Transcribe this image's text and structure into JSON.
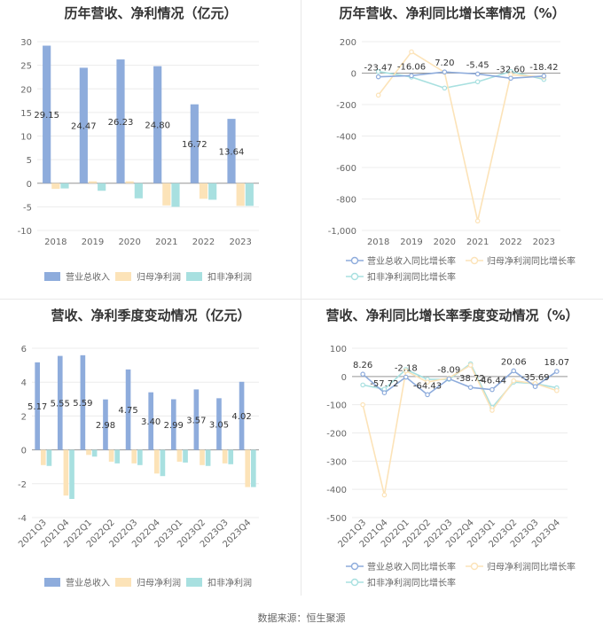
{
  "source_text": "数据来源：恒生聚源",
  "chart_data": [
    {
      "type": "bar",
      "title": "历年营收、净利情况（亿元）",
      "categories": [
        "2018",
        "2019",
        "2020",
        "2021",
        "2022",
        "2023"
      ],
      "ylim": [
        -10,
        30
      ],
      "yticks": [
        30,
        25,
        20,
        15,
        10,
        5,
        0,
        -5,
        -10
      ],
      "legend_position": "bottom",
      "series": [
        {
          "name": "营业总收入",
          "color": "#8eacdc",
          "values": [
            29.15,
            24.47,
            26.23,
            24.8,
            16.72,
            13.64
          ],
          "labels": [
            "29.15",
            "24.47",
            "26.23",
            "24.80",
            "16.72",
            "13.64"
          ]
        },
        {
          "name": "归母净利润",
          "color": "#fce3b8",
          "values": [
            -1.2,
            0.4,
            0.4,
            -4.7,
            -3.3,
            -4.8
          ]
        },
        {
          "name": "扣非净利润",
          "color": "#a8e0e0",
          "values": [
            -1.1,
            -1.6,
            -3.2,
            -5.0,
            -3.5,
            -4.8
          ]
        }
      ]
    },
    {
      "type": "line",
      "title": "历年营收、净利同比增长率情况（%）",
      "categories": [
        "2018",
        "2019",
        "2020",
        "2021",
        "2022",
        "2023"
      ],
      "ylim": [
        -1000,
        200
      ],
      "yticks": [
        200,
        0,
        -200,
        -400,
        -600,
        -800,
        -1000
      ],
      "yticklabels": [
        "200",
        "0",
        "-200",
        "-400",
        "-600",
        "-800",
        "-1,000"
      ],
      "legend_position": "bottom",
      "series": [
        {
          "name": "营业总收入同比增长率",
          "color": "#8eacdc",
          "values": [
            -23.47,
            -16.06,
            7.2,
            -5.45,
            -32.6,
            -18.42
          ],
          "labels": [
            "-23.47",
            "-16.06",
            "7.20",
            "-5.45",
            "-32.60",
            "-18.42"
          ]
        },
        {
          "name": "归母净利润同比增长率",
          "color": "#fce3b8",
          "values": [
            -140,
            135,
            5,
            -940,
            -10,
            -25
          ]
        },
        {
          "name": "扣非净利润同比增长率",
          "color": "#a8e0e0",
          "values": [
            10,
            -25,
            -95,
            -55,
            10,
            -40
          ]
        }
      ]
    },
    {
      "type": "bar",
      "title": "营收、净利季度变动情况（亿元）",
      "categories": [
        "2021Q3",
        "2021Q4",
        "2022Q1",
        "2022Q2",
        "2022Q3",
        "2022Q4",
        "2023Q1",
        "2023Q2",
        "2023Q3",
        "2023Q4"
      ],
      "ylim": [
        -4,
        6
      ],
      "yticks": [
        6,
        4,
        2,
        0,
        -2,
        -4
      ],
      "legend_position": "bottom",
      "series": [
        {
          "name": "营业总收入",
          "color": "#8eacdc",
          "values": [
            5.17,
            5.55,
            5.59,
            2.98,
            4.75,
            3.4,
            2.99,
            3.57,
            3.05,
            4.02
          ],
          "labels": [
            "5.17",
            "5.55",
            "5.59",
            "2.98",
            "4.75",
            "3.40",
            "2.99",
            "3.57",
            "3.05",
            "4.02"
          ]
        },
        {
          "name": "归母净利润",
          "color": "#fce3b8",
          "values": [
            -0.9,
            -2.7,
            -0.3,
            -0.7,
            -0.8,
            -1.4,
            -0.7,
            -0.9,
            -0.8,
            -2.2
          ]
        },
        {
          "name": "扣非净利润",
          "color": "#a8e0e0",
          "values": [
            -0.95,
            -2.9,
            -0.4,
            -0.8,
            -0.9,
            -1.55,
            -0.75,
            -0.95,
            -0.85,
            -2.2
          ]
        }
      ]
    },
    {
      "type": "line",
      "title": "营收、净利同比增长率季度变动情况（%）",
      "categories": [
        "2021Q3",
        "2021Q4",
        "2022Q1",
        "2022Q2",
        "2022Q3",
        "2022Q4",
        "2023Q1",
        "2023Q2",
        "2023Q3",
        "2023Q4"
      ],
      "ylim": [
        -500,
        100
      ],
      "yticks": [
        100,
        0,
        -100,
        -200,
        -300,
        -400,
        -500
      ],
      "legend_position": "bottom",
      "series": [
        {
          "name": "营业总收入同比增长率",
          "color": "#8eacdc",
          "values": [
            8.26,
            -57.72,
            -2.18,
            -64.43,
            -8.09,
            -38.72,
            -46.44,
            20.06,
            -35.69,
            18.07
          ],
          "labels": [
            "8.26",
            "-57.72",
            "-2.18",
            "-64.43",
            "-8.09",
            "-38.72",
            "-46.44",
            "20.06",
            "-35.69",
            "18.07"
          ]
        },
        {
          "name": "归母净利润同比增长率",
          "color": "#fce3b8",
          "values": [
            -100,
            -420,
            20,
            -20,
            -5,
            40,
            -120,
            -15,
            -25,
            -50
          ]
        },
        {
          "name": "扣非净利润同比增长率",
          "color": "#a8e0e0",
          "values": [
            -30,
            -45,
            25,
            -10,
            -10,
            45,
            -110,
            -20,
            -25,
            -40
          ]
        }
      ]
    }
  ]
}
